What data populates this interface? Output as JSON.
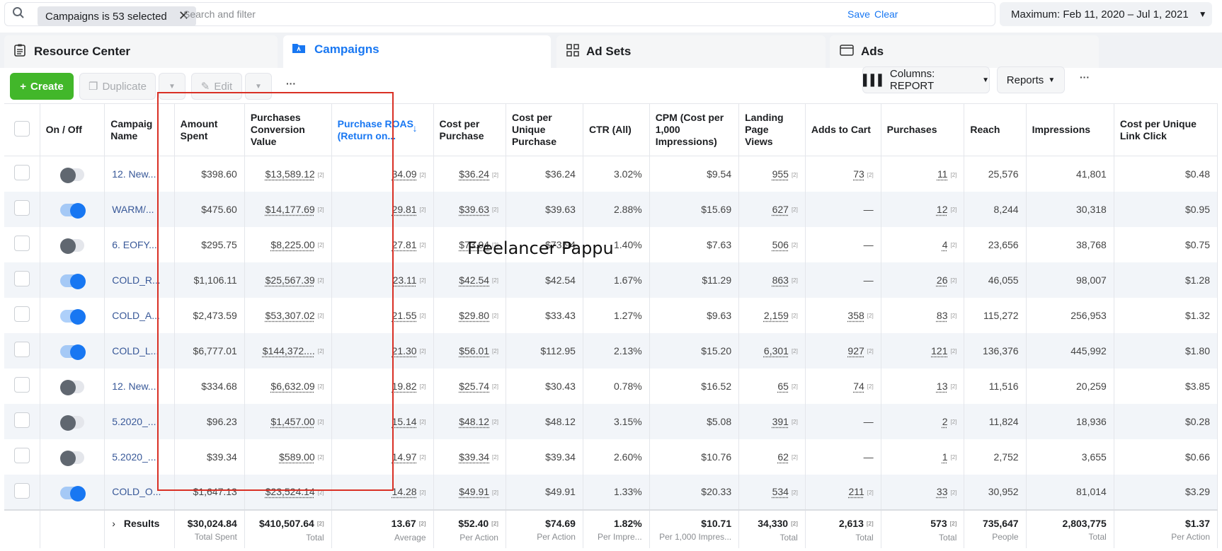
{
  "filter": {
    "chip_label": "Campaigns is 53 selected",
    "placeholder": "Search and filter",
    "save": "Save",
    "clear": "Clear",
    "date_range": "Maximum: Feb 11, 2020 – Jul 1, 2021"
  },
  "tabs": [
    {
      "label": "Resource Center"
    },
    {
      "label": "Campaigns"
    },
    {
      "label": "Ad Sets"
    },
    {
      "label": "Ads"
    }
  ],
  "toolbar": {
    "create": "Create",
    "duplicate": "Duplicate",
    "edit": "Edit",
    "more": "···",
    "columns": "Columns: REPORT",
    "reports": "Reports"
  },
  "columns": [
    "On / Off",
    "Campaig Name",
    "Amount Spent",
    "Purchases Conversion Value",
    "Purchase ROAS (Return on...",
    "Cost per Purchase",
    "Cost per Unique Purchase",
    "CTR (All)",
    "CPM (Cost per 1,000 Impressions)",
    "Landing Page Views",
    "Adds to Cart",
    "Purchases",
    "Reach",
    "Impressions",
    "Cost per Unique Link Click"
  ],
  "rows": [
    {
      "on": false,
      "name": "12. New...",
      "spent": "$398.60",
      "conv": "$13,589.12",
      "roas": "34.09",
      "cpp": "$36.24",
      "cpup": "$36.24",
      "ctr": "3.02%",
      "cpm": "$9.54",
      "lpv": "955",
      "atc": "73",
      "purch": "11",
      "reach": "25,576",
      "impr": "41,801",
      "culc": "$0.48"
    },
    {
      "on": true,
      "name": "WARM/...",
      "spent": "$475.60",
      "conv": "$14,177.69",
      "roas": "29.81",
      "cpp": "$39.63",
      "cpup": "$39.63",
      "ctr": "2.88%",
      "cpm": "$15.69",
      "lpv": "627",
      "atc": "—",
      "purch": "12",
      "reach": "8,244",
      "impr": "30,318",
      "culc": "$0.95"
    },
    {
      "on": false,
      "name": "6. EOFY...",
      "spent": "$295.75",
      "conv": "$8,225.00",
      "roas": "27.81",
      "cpp": "$73.94",
      "cpup": "$73.94",
      "ctr": "1.40%",
      "cpm": "$7.63",
      "lpv": "506",
      "atc": "—",
      "purch": "4",
      "reach": "23,656",
      "impr": "38,768",
      "culc": "$0.75"
    },
    {
      "on": true,
      "name": "COLD_R...",
      "spent": "$1,106.11",
      "conv": "$25,567.39",
      "roas": "23.11",
      "cpp": "$42.54",
      "cpup": "$42.54",
      "ctr": "1.67%",
      "cpm": "$11.29",
      "lpv": "863",
      "atc": "—",
      "purch": "26",
      "reach": "46,055",
      "impr": "98,007",
      "culc": "$1.28"
    },
    {
      "on": true,
      "name": "COLD_A...",
      "spent": "$2,473.59",
      "conv": "$53,307.02",
      "roas": "21.55",
      "cpp": "$29.80",
      "cpup": "$33.43",
      "ctr": "1.27%",
      "cpm": "$9.63",
      "lpv": "2,159",
      "atc": "358",
      "purch": "83",
      "reach": "115,272",
      "impr": "256,953",
      "culc": "$1.32"
    },
    {
      "on": true,
      "name": "COLD_L...",
      "spent": "$6,777.01",
      "conv": "$144,372....",
      "roas": "21.30",
      "cpp": "$56.01",
      "cpup": "$112.95",
      "ctr": "2.13%",
      "cpm": "$15.20",
      "lpv": "6,301",
      "atc": "927",
      "purch": "121",
      "reach": "136,376",
      "impr": "445,992",
      "culc": "$1.80"
    },
    {
      "on": false,
      "name": "12. New...",
      "spent": "$334.68",
      "conv": "$6,632.09",
      "roas": "19.82",
      "cpp": "$25.74",
      "cpup": "$30.43",
      "ctr": "0.78%",
      "cpm": "$16.52",
      "lpv": "65",
      "atc": "74",
      "purch": "13",
      "reach": "11,516",
      "impr": "20,259",
      "culc": "$3.85"
    },
    {
      "on": false,
      "name": "5.2020_...",
      "spent": "$96.23",
      "conv": "$1,457.00",
      "roas": "15.14",
      "cpp": "$48.12",
      "cpup": "$48.12",
      "ctr": "3.15%",
      "cpm": "$5.08",
      "lpv": "391",
      "atc": "—",
      "purch": "2",
      "reach": "11,824",
      "impr": "18,936",
      "culc": "$0.28"
    },
    {
      "on": false,
      "name": "5.2020_...",
      "spent": "$39.34",
      "conv": "$589.00",
      "roas": "14.97",
      "cpp": "$39.34",
      "cpup": "$39.34",
      "ctr": "2.60%",
      "cpm": "$10.76",
      "lpv": "62",
      "atc": "—",
      "purch": "1",
      "reach": "2,752",
      "impr": "3,655",
      "culc": "$0.66"
    },
    {
      "on": true,
      "name": "COLD_O...",
      "spent": "$1,647.13",
      "conv": "$23,524.14",
      "roas": "14.28",
      "cpp": "$49.91",
      "cpup": "$49.91",
      "ctr": "1.33%",
      "cpm": "$20.33",
      "lpv": "534",
      "atc": "211",
      "purch": "33",
      "reach": "30,952",
      "impr": "81,014",
      "culc": "$3.29"
    }
  ],
  "totals": {
    "label": "Results",
    "cells": [
      {
        "v": "$30,024.84",
        "s": "Total Spent"
      },
      {
        "v": "$410,507.64",
        "s": "Total"
      },
      {
        "v": "13.67",
        "s": "Average"
      },
      {
        "v": "$52.40",
        "s": "Per Action"
      },
      {
        "v": "$74.69",
        "s": "Per Action"
      },
      {
        "v": "1.82%",
        "s": "Per Impre..."
      },
      {
        "v": "$10.71",
        "s": "Per 1,000 Impres..."
      },
      {
        "v": "34,330",
        "s": "Total"
      },
      {
        "v": "2,613",
        "s": "Total"
      },
      {
        "v": "573",
        "s": "Total"
      },
      {
        "v": "735,647",
        "s": "People"
      },
      {
        "v": "2,803,775",
        "s": "Total"
      },
      {
        "v": "$1.37",
        "s": "Per Action"
      }
    ]
  },
  "watermark": "Freelancer Pappu",
  "colors": {
    "accent": "#1877f2",
    "create": "#42b72a",
    "highlight_box": "#d93025"
  }
}
